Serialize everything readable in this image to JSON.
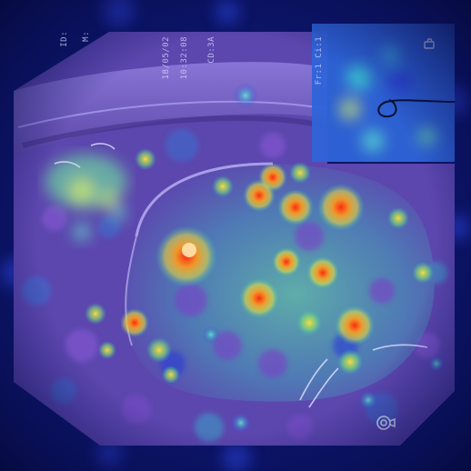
{
  "scene": {
    "description_free": true,
    "palette": {
      "background": "#0a0f5a",
      "tissue_base": "#6a4fb0",
      "heat_low": "#2b3bd6",
      "heat_mid": "#29d0b5",
      "heat_high": "#ffd23a",
      "heat_peak": "#ff3b1a",
      "inset_bg": "#2b62d8"
    },
    "overlay_text": {
      "left_id": "ID:",
      "age_label": "M:",
      "date": "18/05/02",
      "time": "10:32:08",
      "code": "CD:3A",
      "inset_label": "Fr:1 Ci:1"
    },
    "icon_names": [
      "scope-icon",
      "camera-icon"
    ]
  }
}
